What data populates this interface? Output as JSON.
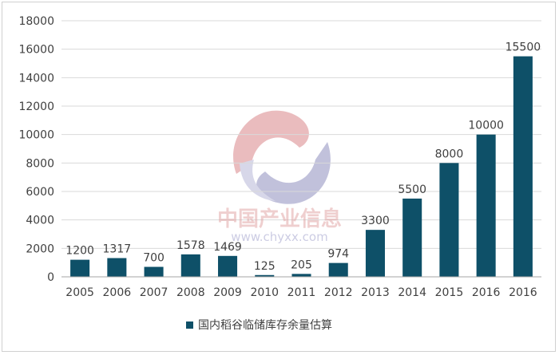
{
  "chart_data": {
    "type": "bar",
    "categories": [
      "2005",
      "2006",
      "2007",
      "2008",
      "2009",
      "2010",
      "2011",
      "2012",
      "2013",
      "2014",
      "2015",
      "2016",
      "2016"
    ],
    "series": [
      {
        "name": "国内稻谷临储库存余量估算",
        "values": [
          1200,
          1317,
          700,
          1578,
          1469,
          125,
          205,
          974,
          3300,
          5500,
          8000,
          10000,
          15500
        ],
        "labels": [
          "1200",
          "1317",
          "700",
          "1578",
          "1469",
          "125",
          "205",
          "974",
          "3300",
          "5500",
          "8000",
          "10000",
          "15500"
        ]
      }
    ],
    "yticks": [
      "0",
      "2000",
      "4000",
      "6000",
      "8000",
      "10000",
      "12000",
      "14000",
      "16000",
      "18000"
    ],
    "ylim": [
      0,
      18000
    ],
    "grid": true,
    "legend_position": "bottom",
    "bar_color": "#0e5068",
    "watermark": {
      "text": "中国产业信息",
      "url": "www.chyxx.com"
    }
  }
}
